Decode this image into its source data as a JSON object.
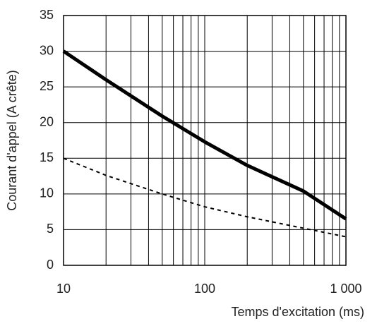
{
  "chart_data": {
    "type": "line",
    "x_label": "Temps d'excitation (ms)",
    "y_label": "Courant d'appel (A crête)",
    "x_scale": "log",
    "x": [
      10,
      20,
      50,
      100,
      200,
      500,
      1000
    ],
    "series": [
      {
        "color": "#000000",
        "style": "solid",
        "values": [
          30,
          26,
          20.9,
          17.3,
          14,
          10.4,
          6.5
        ]
      },
      {
        "color": "#000000",
        "style": "dashed",
        "values": [
          15,
          12.6,
          10,
          8.2,
          6.8,
          5.2,
          4
        ]
      }
    ],
    "xlim": [
      10,
      1000
    ],
    "xticks": [
      10,
      100,
      {
        "value": 1000,
        "label": "1 000"
      }
    ],
    "ylim": [
      0,
      35
    ],
    "yticks": [
      0,
      5,
      10,
      15,
      20,
      25,
      30,
      35
    ],
    "grid": true
  }
}
